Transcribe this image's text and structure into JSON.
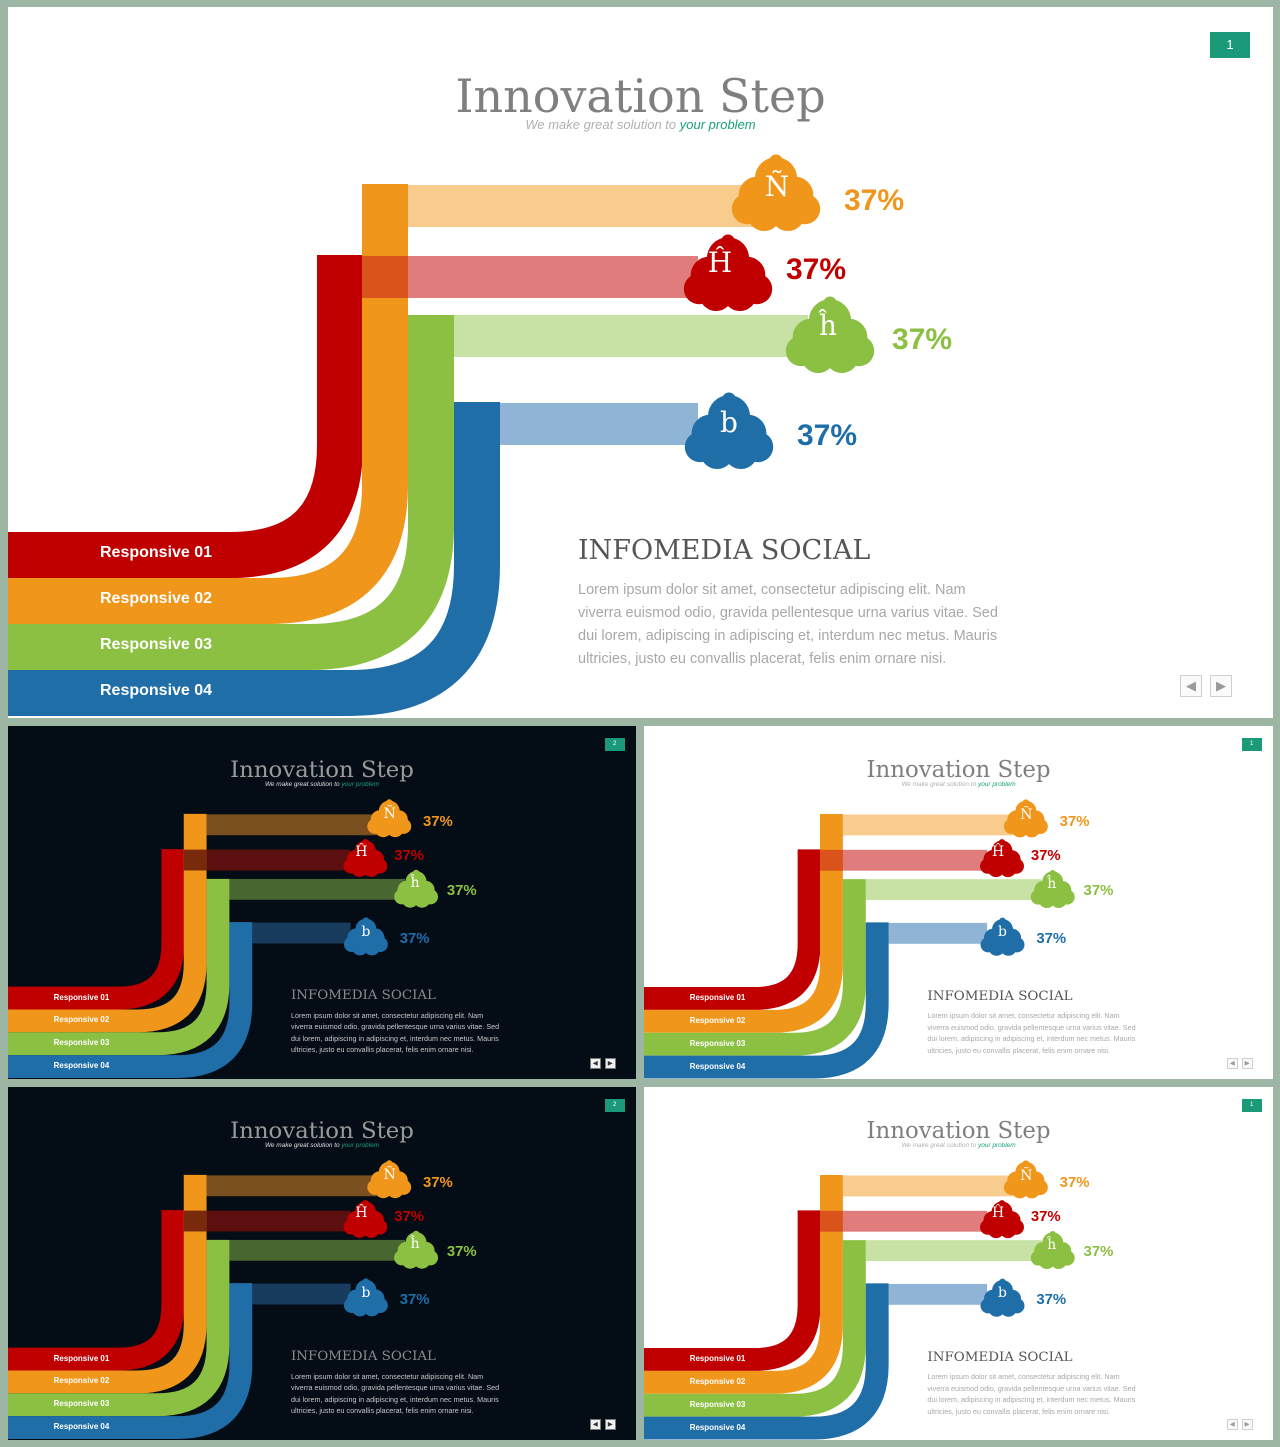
{
  "slide": {
    "title": "Innovation Step",
    "subtitle_main": "We make great solution to",
    "subtitle_highlight": "your problem",
    "page_number": "1",
    "page_number_alt": "2",
    "bands": [
      {
        "label": "Responsive 01",
        "color": "#c00000",
        "light": "#e07c7c",
        "dark": "#5c0f0f",
        "stat": "37%",
        "glyph": "Ĥ"
      },
      {
        "label": "Responsive 02",
        "color": "#f0961a",
        "light": "#f8cc8c",
        "dark": "#7a5020",
        "stat": "37%",
        "glyph": "Ñ"
      },
      {
        "label": "Responsive 03",
        "color": "#8cc043",
        "light": "#c8e2a6",
        "dark": "#476630",
        "stat": "37%",
        "glyph": "ĥ"
      },
      {
        "label": "Responsive 04",
        "color": "#1f6ea8",
        "light": "#8fb4d5",
        "dark": "#173c5e",
        "stat": "37%",
        "glyph": "b"
      }
    ],
    "heading": "INFOMEDIA SOCIAL",
    "body": "Lorem ipsum dolor sit amet, consectetur adipiscing elit. Nam viverra euismod odio, gravida pellentesque urna varius vitae. Sed dui lorem, adipiscing in adipiscing et, interdum nec metus. Mauris ultricies, justo eu convallis placerat, felis enim ornare nisi.",
    "prev_label": "◀",
    "next_label": "▶"
  },
  "colors": {
    "frame_background": "#9db5a3",
    "light_slide": "#ffffff",
    "dark_slide": "#040c16",
    "badge": "#1a9a78",
    "accent": "#1aa07e"
  }
}
